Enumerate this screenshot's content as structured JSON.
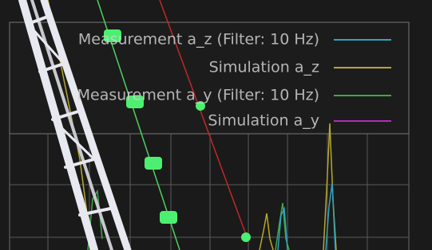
{
  "legend": {
    "entries": [
      {
        "label": "Measurement a_z (Filter: 10 Hz)",
        "color": "#2fa3bf"
      },
      {
        "label": "Simulation a_z",
        "color": "#b8a82a"
      },
      {
        "label": "Measurement a_y (Filter: 10 Hz)",
        "color": "#3fa844"
      },
      {
        "label": "Simulation a_y",
        "color": "#b030b0"
      }
    ]
  }
}
